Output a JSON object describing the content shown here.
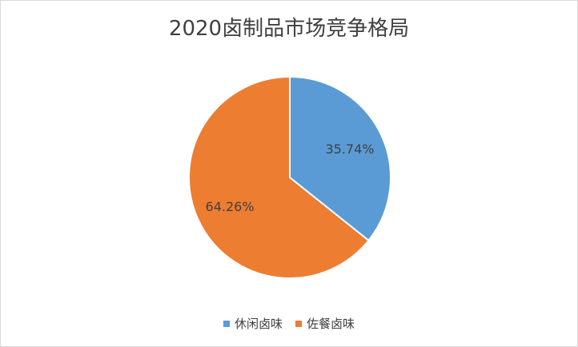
{
  "chart_data": {
    "type": "pie",
    "title": "2020卤制品市场竞争格局",
    "categories": [
      "休闲卤味",
      "佐餐卤味"
    ],
    "values": [
      35.74,
      64.26
    ],
    "data_labels": [
      "35.74%",
      "64.26%"
    ],
    "colors": [
      "#5B9BD5",
      "#ED7D31"
    ],
    "start_angle": "12 o'clock",
    "direction": "clockwise",
    "legend_position": "bottom"
  }
}
